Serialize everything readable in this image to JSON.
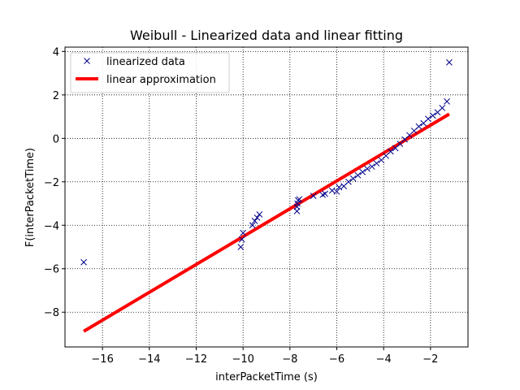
{
  "chart_data": {
    "type": "scatter",
    "title": "Weibull - Linearized data and linear fitting",
    "xlabel": "interPacketTime (s)",
    "ylabel": "F(interPacketTime)",
    "xlim": [
      -17.6,
      -0.4
    ],
    "ylim": [
      -9.6,
      4.2
    ],
    "xticks": [
      -16,
      -14,
      -12,
      -10,
      -8,
      -6,
      -4,
      -2
    ],
    "yticks": [
      -8,
      -6,
      -4,
      -2,
      0,
      2,
      4
    ],
    "grid": true,
    "legend_position": "top-left",
    "series": [
      {
        "name": "linearized data",
        "kind": "scatter",
        "marker": "x",
        "color": "#00008b",
        "points": [
          [
            -16.8,
            -5.7
          ],
          [
            -10.1,
            -5.0
          ],
          [
            -10.05,
            -4.65
          ],
          [
            -10.0,
            -4.35
          ],
          [
            -9.6,
            -4.0
          ],
          [
            -9.5,
            -3.8
          ],
          [
            -9.4,
            -3.65
          ],
          [
            -9.3,
            -3.5
          ],
          [
            -7.7,
            -3.35
          ],
          [
            -7.7,
            -3.15
          ],
          [
            -7.68,
            -3.0
          ],
          [
            -7.65,
            -2.85
          ],
          [
            -7.6,
            -2.8
          ],
          [
            -7.0,
            -2.65
          ],
          [
            -6.6,
            -2.6
          ],
          [
            -6.5,
            -2.55
          ],
          [
            -6.2,
            -2.4
          ],
          [
            -6.0,
            -2.45
          ],
          [
            -5.9,
            -2.25
          ],
          [
            -5.7,
            -2.2
          ],
          [
            -5.5,
            -2.0
          ],
          [
            -5.3,
            -1.85
          ],
          [
            -5.1,
            -1.7
          ],
          [
            -4.9,
            -1.55
          ],
          [
            -4.7,
            -1.4
          ],
          [
            -4.5,
            -1.3
          ],
          [
            -4.3,
            -1.15
          ],
          [
            -4.1,
            -1.0
          ],
          [
            -3.9,
            -0.8
          ],
          [
            -3.7,
            -0.6
          ],
          [
            -3.5,
            -0.45
          ],
          [
            -3.3,
            -0.25
          ],
          [
            -3.1,
            -0.05
          ],
          [
            -2.9,
            0.15
          ],
          [
            -2.7,
            0.35
          ],
          [
            -2.5,
            0.55
          ],
          [
            -2.3,
            0.7
          ],
          [
            -2.1,
            0.9
          ],
          [
            -1.9,
            1.05
          ],
          [
            -1.7,
            1.2
          ],
          [
            -1.5,
            1.4
          ],
          [
            -1.3,
            1.7
          ],
          [
            -1.2,
            3.5
          ]
        ]
      },
      {
        "name": "linear approximation",
        "kind": "line",
        "color": "#ff0000",
        "points": [
          [
            -16.8,
            -8.88
          ],
          [
            -1.2,
            1.12
          ]
        ]
      }
    ]
  }
}
